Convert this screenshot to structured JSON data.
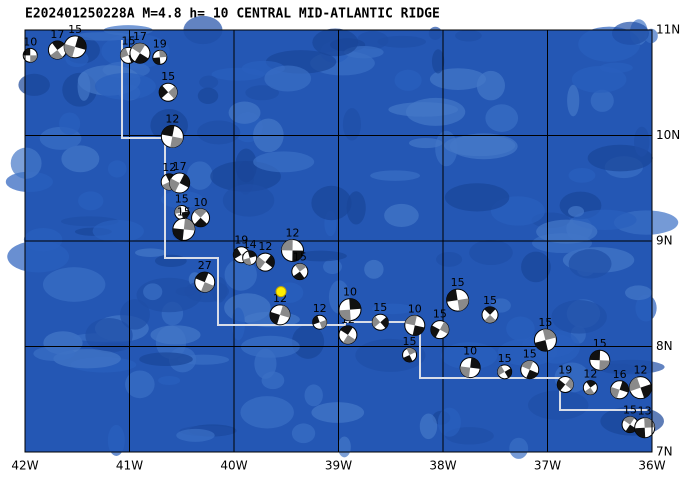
{
  "map": {
    "title": "E202401250228A M=4.8 h= 10 CENTRAL MID-ATLANTIC RIDGE",
    "lonlim": [
      -42,
      -36
    ],
    "latlim": [
      7,
      11
    ],
    "lonticks": [
      {
        "value": -42,
        "label": "42W"
      },
      {
        "value": -41,
        "label": "41W"
      },
      {
        "value": -40,
        "label": "40W"
      },
      {
        "value": -39,
        "label": "39W"
      },
      {
        "value": -38,
        "label": "38W"
      },
      {
        "value": -37,
        "label": "37W"
      },
      {
        "value": -36,
        "label": "36W"
      }
    ],
    "latticks": [
      {
        "value": 7,
        "label": "7N"
      },
      {
        "value": 8,
        "label": "8N"
      },
      {
        "value": 9,
        "label": "9N"
      },
      {
        "value": 10,
        "label": "10N"
      },
      {
        "value": 11,
        "label": "11N"
      }
    ],
    "epicenter": {
      "lon": -39.55,
      "lat": 8.52
    },
    "events": [
      {
        "lon": -41.95,
        "lat": 10.76,
        "depth": 10
      },
      {
        "lon": -41.69,
        "lat": 10.81,
        "depth": 17
      },
      {
        "lon": -41.52,
        "lat": 10.84,
        "depth": 15
      },
      {
        "lon": -41.01,
        "lat": 10.76,
        "depth": 15
      },
      {
        "lon": -40.9,
        "lat": 10.78,
        "depth": 17
      },
      {
        "lon": -40.71,
        "lat": 10.74,
        "depth": 19
      },
      {
        "lon": -40.63,
        "lat": 10.41,
        "depth": 15
      },
      {
        "lon": -40.59,
        "lat": 9.99,
        "depth": 12
      },
      {
        "lon": -40.62,
        "lat": 9.56,
        "depth": 12
      },
      {
        "lon": -40.52,
        "lat": 9.55,
        "depth": 17
      },
      {
        "lon": -40.5,
        "lat": 9.27,
        "depth": 15
      },
      {
        "lon": -40.32,
        "lat": 9.22,
        "depth": 10
      },
      {
        "lon": -40.48,
        "lat": 9.11,
        "depth": 15
      },
      {
        "lon": -39.93,
        "lat": 8.87,
        "depth": 19
      },
      {
        "lon": -40.28,
        "lat": 8.61,
        "depth": 27
      },
      {
        "lon": -39.85,
        "lat": 8.84,
        "depth": 14
      },
      {
        "lon": -39.7,
        "lat": 8.8,
        "depth": 12
      },
      {
        "lon": -39.44,
        "lat": 8.91,
        "depth": 12
      },
      {
        "lon": -39.37,
        "lat": 8.71,
        "depth": 15
      },
      {
        "lon": -39.56,
        "lat": 8.3,
        "depth": 12
      },
      {
        "lon": -39.18,
        "lat": 8.23,
        "depth": 12
      },
      {
        "lon": -38.91,
        "lat": 8.11,
        "depth": 12
      },
      {
        "lon": -38.89,
        "lat": 8.35,
        "depth": 10
      },
      {
        "lon": -38.6,
        "lat": 8.23,
        "depth": 15
      },
      {
        "lon": -38.27,
        "lat": 8.2,
        "depth": 10
      },
      {
        "lon": -38.32,
        "lat": 7.92,
        "depth": 15
      },
      {
        "lon": -38.03,
        "lat": 8.16,
        "depth": 15
      },
      {
        "lon": -37.86,
        "lat": 8.44,
        "depth": 15
      },
      {
        "lon": -37.55,
        "lat": 8.3,
        "depth": 15
      },
      {
        "lon": -37.74,
        "lat": 7.8,
        "depth": 10
      },
      {
        "lon": -37.41,
        "lat": 7.76,
        "depth": 15
      },
      {
        "lon": -37.17,
        "lat": 7.78,
        "depth": 15
      },
      {
        "lon": -37.02,
        "lat": 8.06,
        "depth": 15
      },
      {
        "lon": -36.83,
        "lat": 7.64,
        "depth": 19
      },
      {
        "lon": -36.5,
        "lat": 7.87,
        "depth": 15
      },
      {
        "lon": -36.59,
        "lat": 7.61,
        "depth": 12
      },
      {
        "lon": -36.31,
        "lat": 7.59,
        "depth": 16
      },
      {
        "lon": -36.11,
        "lat": 7.61,
        "depth": 12
      },
      {
        "lon": -36.21,
        "lat": 7.26,
        "depth": 15
      },
      {
        "lon": -36.07,
        "lat": 7.23,
        "depth": 13
      }
    ]
  }
}
